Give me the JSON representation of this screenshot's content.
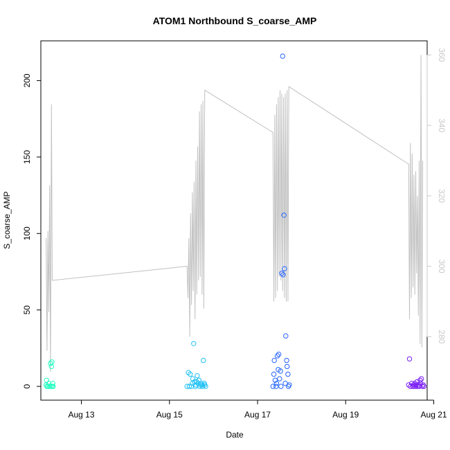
{
  "chart_data": {
    "type": "scatter",
    "title": "ATOM1 Northbound S_coarse_AMP",
    "xlabel": "Date",
    "ylabel": "S_coarse_AMP",
    "x_ticks": [
      {
        "label": "Aug 13",
        "day": 13
      },
      {
        "label": "Aug 15",
        "day": 15
      },
      {
        "label": "Aug 17",
        "day": 17
      },
      {
        "label": "Aug 19",
        "day": 19
      },
      {
        "label": "Aug 21",
        "day": 21
      }
    ],
    "xlim_days": [
      12.08,
      20.85
    ],
    "ylim": [
      -9,
      226
    ],
    "y_ticks": [
      0,
      50,
      100,
      150,
      200
    ],
    "secondary_axis": {
      "color": "#c8c8c8",
      "ylim": [
        262,
        364
      ],
      "ticks": [
        280,
        300,
        320,
        340,
        360
      ]
    },
    "series": [
      {
        "group": 1,
        "color": "#1fffc0",
        "points": [
          [
            12.2,
            1
          ],
          [
            12.21,
            4
          ],
          [
            12.22,
            0
          ],
          [
            12.24,
            0
          ],
          [
            12.26,
            2
          ],
          [
            12.28,
            0
          ],
          [
            12.3,
            15
          ],
          [
            12.31,
            0
          ],
          [
            12.32,
            13
          ],
          [
            12.33,
            16
          ],
          [
            12.34,
            0
          ],
          [
            12.35,
            2
          ],
          [
            12.36,
            0
          ]
        ]
      },
      {
        "group": 2,
        "color": "#1fc0f5",
        "points": [
          [
            15.4,
            0
          ],
          [
            15.43,
            9
          ],
          [
            15.45,
            0
          ],
          [
            15.47,
            8
          ],
          [
            15.5,
            0
          ],
          [
            15.52,
            2
          ],
          [
            15.53,
            5
          ],
          [
            15.55,
            28
          ],
          [
            15.57,
            3
          ],
          [
            15.59,
            0
          ],
          [
            15.6,
            1
          ],
          [
            15.62,
            3
          ],
          [
            15.63,
            7
          ],
          [
            15.65,
            2
          ],
          [
            15.67,
            4
          ],
          [
            15.69,
            0
          ],
          [
            15.7,
            1
          ],
          [
            15.72,
            2
          ],
          [
            15.74,
            1
          ],
          [
            15.75,
            0
          ],
          [
            15.77,
            17
          ],
          [
            15.79,
            2
          ],
          [
            15.8,
            1
          ],
          [
            15.82,
            0
          ]
        ]
      },
      {
        "group": 3,
        "color": "#2464ff",
        "points": [
          [
            17.35,
            0
          ],
          [
            17.37,
            8
          ],
          [
            17.38,
            17
          ],
          [
            17.4,
            4
          ],
          [
            17.42,
            0
          ],
          [
            17.43,
            2
          ],
          [
            17.45,
            20
          ],
          [
            17.47,
            11
          ],
          [
            17.48,
            21
          ],
          [
            17.5,
            5
          ],
          [
            17.52,
            10
          ],
          [
            17.53,
            0
          ],
          [
            17.55,
            74
          ],
          [
            17.57,
            216
          ],
          [
            17.58,
            73
          ],
          [
            17.6,
            112
          ],
          [
            17.61,
            77
          ],
          [
            17.63,
            2
          ],
          [
            17.64,
            33
          ],
          [
            17.66,
            17
          ],
          [
            17.67,
            13
          ],
          [
            17.69,
            8
          ],
          [
            17.7,
            0
          ],
          [
            17.72,
            1
          ]
        ]
      },
      {
        "group": 4,
        "color": "#7a1ff5",
        "points": [
          [
            20.43,
            1
          ],
          [
            20.45,
            18
          ],
          [
            20.47,
            0
          ],
          [
            20.5,
            2
          ],
          [
            20.52,
            0
          ],
          [
            20.54,
            1
          ],
          [
            20.55,
            0
          ],
          [
            20.57,
            2
          ],
          [
            20.59,
            0
          ],
          [
            20.6,
            1
          ],
          [
            20.62,
            3
          ],
          [
            20.64,
            0
          ],
          [
            20.65,
            1
          ],
          [
            20.67,
            0
          ],
          [
            20.69,
            4
          ],
          [
            20.7,
            2
          ],
          [
            20.72,
            5
          ],
          [
            20.74,
            0
          ],
          [
            20.76,
            1
          ],
          [
            20.78,
            0
          ]
        ]
      }
    ],
    "secondary_line": {
      "color": "#c0c0c0",
      "points": [
        [
          12.2,
          308
        ],
        [
          12.22,
          276
        ],
        [
          12.24,
          310
        ],
        [
          12.26,
          287
        ],
        [
          12.28,
          323
        ],
        [
          12.3,
          270
        ],
        [
          12.32,
          346
        ],
        [
          12.34,
          296
        ],
        [
          15.4,
          300
        ],
        [
          15.42,
          291
        ],
        [
          15.44,
          308
        ],
        [
          15.46,
          280
        ],
        [
          15.48,
          315
        ],
        [
          15.5,
          289
        ],
        [
          15.52,
          321
        ],
        [
          15.54,
          293
        ],
        [
          15.56,
          324
        ],
        [
          15.58,
          285
        ],
        [
          15.6,
          330
        ],
        [
          15.62,
          292
        ],
        [
          15.64,
          334
        ],
        [
          15.66,
          296
        ],
        [
          15.68,
          344
        ],
        [
          15.7,
          297
        ],
        [
          15.72,
          346
        ],
        [
          15.74,
          292
        ],
        [
          15.76,
          347
        ],
        [
          15.78,
          288
        ],
        [
          15.8,
          350
        ],
        [
          17.35,
          338
        ],
        [
          17.37,
          290
        ],
        [
          17.39,
          343
        ],
        [
          17.41,
          291
        ],
        [
          17.43,
          346
        ],
        [
          17.45,
          293
        ],
        [
          17.47,
          348
        ],
        [
          17.49,
          297
        ],
        [
          17.51,
          350
        ],
        [
          17.53,
          296
        ],
        [
          17.55,
          349
        ],
        [
          17.57,
          293
        ],
        [
          17.59,
          348
        ],
        [
          17.61,
          291
        ],
        [
          17.63,
          349
        ],
        [
          17.65,
          290
        ],
        [
          17.67,
          350
        ],
        [
          17.69,
          290
        ],
        [
          17.71,
          351
        ],
        [
          20.43,
          329
        ],
        [
          20.45,
          285
        ],
        [
          20.47,
          335
        ],
        [
          20.49,
          291
        ],
        [
          20.51,
          332
        ],
        [
          20.53,
          294
        ],
        [
          20.55,
          326
        ],
        [
          20.57,
          292
        ],
        [
          20.59,
          327
        ],
        [
          20.61,
          298
        ],
        [
          20.63,
          320
        ],
        [
          20.65,
          286
        ],
        [
          20.67,
          330
        ],
        [
          20.69,
          278
        ],
        [
          20.71,
          360
        ],
        [
          20.73,
          277
        ],
        [
          20.75,
          330
        ]
      ]
    }
  }
}
